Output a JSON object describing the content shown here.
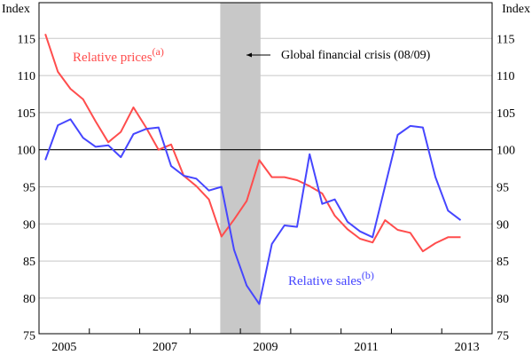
{
  "chart_data": {
    "type": "line",
    "title": "",
    "ylabel_left": "Index",
    "ylabel_right": "Index",
    "ylim": [
      75,
      120
    ],
    "xlim": [
      2005,
      2014
    ],
    "yticks": [
      75,
      80,
      85,
      90,
      95,
      100,
      105,
      110,
      115
    ],
    "xtick_labels": [
      "2005",
      "2007",
      "2009",
      "2011",
      "2013"
    ],
    "grid": true,
    "reference_line": 100,
    "shaded_period": {
      "start": 2008.6,
      "end": 2009.4,
      "color": "#c8c8c8",
      "label": "Global financial crisis (08/09)"
    },
    "x": [
      "2005Q1",
      "2005Q2",
      "2005Q3",
      "2005Q4",
      "2006Q1",
      "2006Q2",
      "2006Q3",
      "2006Q4",
      "2007Q1",
      "2007Q2",
      "2007Q3",
      "2007Q4",
      "2008Q1",
      "2008Q2",
      "2008Q3",
      "2008Q4",
      "2009Q1",
      "2009Q2",
      "2009Q3",
      "2009Q4",
      "2010Q1",
      "2010Q2",
      "2010Q3",
      "2010Q4",
      "2011Q1",
      "2011Q2",
      "2011Q3",
      "2011Q4",
      "2012Q1",
      "2012Q2",
      "2012Q3",
      "2012Q4",
      "2013Q1",
      "2013Q2"
    ],
    "series": [
      {
        "name": "Relative prices",
        "superscript": "(a)",
        "color": "#ff4d4d",
        "values": [
          115.6,
          110.5,
          108.2,
          106.8,
          103.8,
          101.0,
          102.4,
          105.7,
          103.0,
          100.0,
          100.7,
          96.5,
          95.1,
          93.3,
          88.3,
          90.6,
          93.1,
          98.6,
          96.3,
          96.3,
          95.9,
          95.1,
          94.1,
          91.1,
          89.3,
          88.0,
          87.5,
          90.5,
          89.2,
          88.8,
          86.3,
          87.4,
          88.2,
          88.2
        ]
      },
      {
        "name": "Relative sales",
        "superscript": "(b)",
        "color": "#4646ff",
        "values": [
          98.6,
          103.3,
          104.1,
          101.6,
          100.4,
          100.6,
          99.0,
          102.1,
          102.8,
          103.0,
          97.8,
          96.5,
          96.1,
          94.5,
          95.0,
          86.5,
          81.7,
          79.2,
          87.3,
          89.8,
          89.6,
          99.4,
          92.7,
          93.3,
          90.3,
          89.0,
          88.2,
          95.1,
          102.0,
          103.2,
          103.0,
          96.3,
          91.8,
          90.5
        ]
      }
    ]
  }
}
